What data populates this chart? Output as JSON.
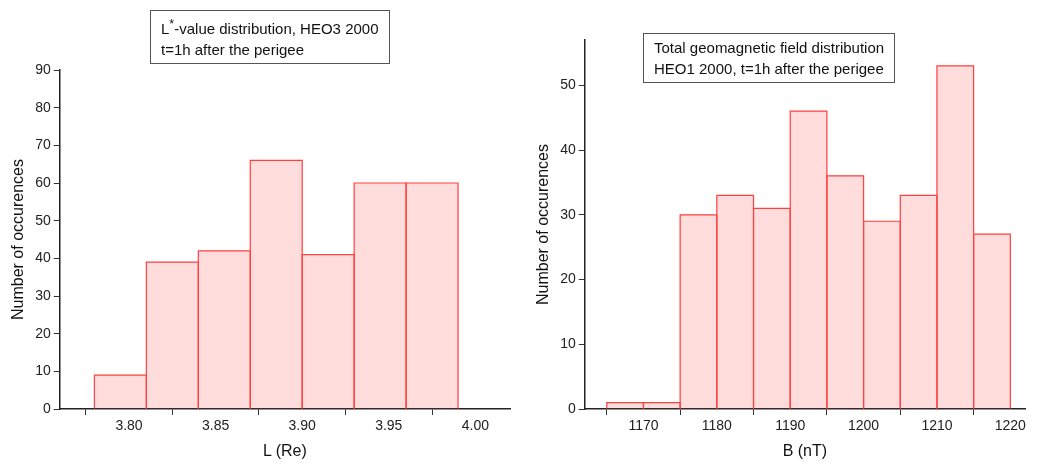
{
  "chart_data": [
    {
      "type": "histogram",
      "title": "L$^{*}$-value distribution, HEO3 2000",
      "subtitle": "t=1h after the perigee",
      "xlabel": "L (Re)",
      "ylabel": "Number of occurences",
      "bins": [
        3.78,
        3.81,
        3.84,
        3.87,
        3.9,
        3.93,
        3.96,
        3.99
      ],
      "values": [
        9,
        39,
        42,
        66,
        41,
        60,
        60
      ],
      "color": "#ff4040",
      "xlim": [
        3.76,
        4.02
      ],
      "xticks": [
        {
          "value": 3.8,
          "label": "3.80"
        },
        {
          "value": 3.85,
          "label": "3.85"
        },
        {
          "value": 3.9,
          "label": "3.90"
        },
        {
          "value": 3.95,
          "label": "3.95"
        },
        {
          "value": 4.0,
          "label": "4.00"
        }
      ],
      "ylim": [
        0,
        90
      ],
      "yticks": [
        0,
        10,
        20,
        30,
        40,
        50,
        60,
        70,
        80,
        90
      ],
      "grid": false,
      "legend": false
    },
    {
      "type": "histogram",
      "title": "Total geomagnetic field distribution",
      "subtitle": "HEO1 2000, t=1h after the perigee",
      "xlabel": "B (nT)",
      "ylabel": "Number of occurences",
      "bins": [
        1165,
        1170,
        1175,
        1180,
        1185,
        1190,
        1195,
        1200,
        1205,
        1210,
        1215,
        1220
      ],
      "values": [
        1,
        1,
        30,
        33,
        31,
        46,
        36,
        29,
        33,
        53,
        27
      ],
      "color": "#ff4040",
      "xlim": [
        1162,
        1222
      ],
      "xticks": [
        1170,
        1180,
        1190,
        1200,
        1210,
        1220
      ],
      "ylim": [
        0,
        57
      ],
      "yticks": [
        0,
        10,
        20,
        30,
        40,
        50
      ],
      "grid": false,
      "legend": false
    }
  ]
}
